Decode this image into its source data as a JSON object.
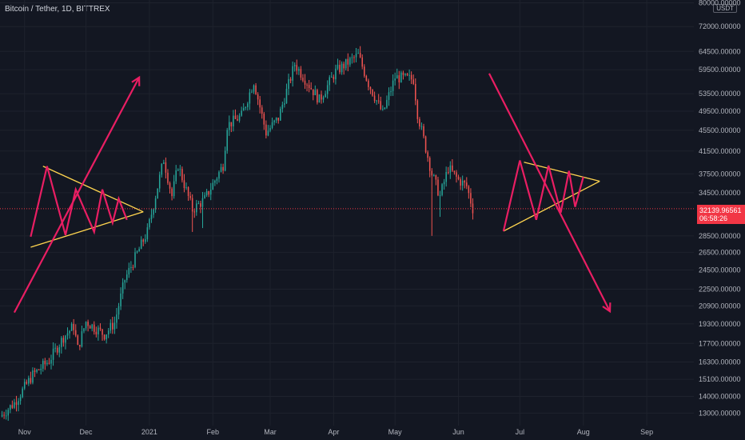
{
  "header": {
    "symbol_title": "Bitcoin / Tether, 1D, BITTREX"
  },
  "price_axis": {
    "unit": "USDT"
  },
  "last_price": {
    "value": "32139.96561",
    "countdown": "06:58:26"
  },
  "colors": {
    "background": "#131722",
    "grid": "#1e222d",
    "up": "#26a69a",
    "down": "#ef5350",
    "arrow": "#e91e63",
    "triangle": "#ffd54f",
    "last_price": "#f23645"
  },
  "chart_data": {
    "type": "candlestick",
    "y_scale": "log",
    "ylim": [
      12300,
      81000
    ],
    "xlim": [
      "2020-10-20",
      "2021-09-24"
    ],
    "y_ticks": [
      "80000.00000",
      "72000.00000",
      "64500.00000",
      "59500.00000",
      "53500.00000",
      "49500.00000",
      "45500.00000",
      "41500.00000",
      "37500.00000",
      "34500.00000",
      "28500.00000",
      "26500.00000",
      "24500.00000",
      "22500.00000",
      "20900.00000",
      "19300.00000",
      "17700.00000",
      "16300.00000",
      "15100.00000",
      "14000.00000",
      "13000.00000"
    ],
    "x_ticks": [
      {
        "label": "Nov",
        "date": "2020-11-01"
      },
      {
        "label": "Dec",
        "date": "2020-12-01"
      },
      {
        "label": "2021",
        "date": "2021-01-01"
      },
      {
        "label": "Feb",
        "date": "2021-02-01"
      },
      {
        "label": "Mar",
        "date": "2021-03-01"
      },
      {
        "label": "Apr",
        "date": "2021-04-01"
      },
      {
        "label": "May",
        "date": "2021-05-01"
      },
      {
        "label": "Jun",
        "date": "2021-06-01"
      },
      {
        "label": "Jul",
        "date": "2021-07-01"
      },
      {
        "label": "Aug",
        "date": "2021-08-01"
      },
      {
        "label": "Sep",
        "date": "2021-09-01"
      }
    ],
    "price_path": [
      [
        "2020-10-20",
        12800
      ],
      [
        "2020-10-27",
        13600
      ],
      [
        "2020-11-05",
        15400
      ],
      [
        "2020-11-13",
        16400
      ],
      [
        "2020-11-20",
        18200
      ],
      [
        "2020-11-25",
        19100
      ],
      [
        "2020-11-27",
        17300
      ],
      [
        "2020-12-01",
        19500
      ],
      [
        "2020-12-10",
        18400
      ],
      [
        "2020-12-15",
        19400
      ],
      [
        "2020-12-20",
        23500
      ],
      [
        "2020-12-31",
        29000
      ],
      [
        "2021-01-08",
        40000
      ],
      [
        "2021-01-12",
        34000
      ],
      [
        "2021-01-15",
        39000
      ],
      [
        "2021-01-22",
        32000
      ],
      [
        "2021-01-28",
        33500
      ],
      [
        "2021-02-06",
        39000
      ],
      [
        "2021-02-08",
        46500
      ],
      [
        "2021-02-15",
        48500
      ],
      [
        "2021-02-21",
        56500
      ],
      [
        "2021-02-27",
        45000
      ],
      [
        "2021-03-05",
        48000
      ],
      [
        "2021-03-13",
        61000
      ],
      [
        "2021-03-25",
        52000
      ],
      [
        "2021-04-02",
        59000
      ],
      [
        "2021-04-13",
        63500
      ],
      [
        "2021-04-18",
        56000
      ],
      [
        "2021-04-25",
        49000
      ],
      [
        "2021-05-01",
        57500
      ],
      [
        "2021-05-10",
        57000
      ],
      [
        "2021-05-12",
        49000
      ],
      [
        "2021-05-19",
        37500
      ],
      [
        "2021-05-23",
        34000
      ],
      [
        "2021-05-27",
        38500
      ],
      [
        "2021-06-01",
        36500
      ],
      [
        "2021-06-05",
        35500
      ],
      [
        "2021-06-08",
        32140
      ]
    ],
    "wicks": [
      {
        "date": "2021-01-22",
        "low": 29000
      },
      {
        "date": "2021-01-27",
        "low": 29500
      },
      {
        "date": "2021-05-19",
        "low": 28500
      },
      {
        "date": "2021-05-23",
        "low": 31000
      }
    ],
    "drawings": {
      "arrows": [
        {
          "from": [
            "2020-10-27",
            20300
          ],
          "to": [
            "2020-12-27",
            57500
          ]
        },
        {
          "from": [
            "2021-06-16",
            58500
          ],
          "to": [
            "2021-08-14",
            20400
          ]
        }
      ],
      "triangles": [
        {
          "apex": [
            "2020-12-29",
            31700
          ],
          "upper_start": [
            "2020-11-10",
            38800
          ],
          "lower_start": [
            "2020-11-04",
            27100
          ]
        },
        {
          "apex": [
            "2021-08-09",
            36300
          ],
          "upper_start": [
            "2021-07-03",
            39500
          ],
          "lower_start": [
            "2021-06-23",
            29100
          ]
        }
      ],
      "zigzags": [
        [
          [
            "2020-11-04",
            28400
          ],
          [
            "2020-11-12",
            38800
          ],
          [
            "2020-11-21",
            28600
          ],
          [
            "2020-11-26",
            35000
          ],
          [
            "2020-12-05",
            29000
          ],
          [
            "2020-12-09",
            35000
          ],
          [
            "2020-12-14",
            30200
          ],
          [
            "2020-12-17",
            33600
          ],
          [
            "2020-12-21",
            30600
          ]
        ],
        [
          [
            "2021-06-23",
            29100
          ],
          [
            "2021-07-01",
            39800
          ],
          [
            "2021-07-09",
            30600
          ],
          [
            "2021-07-15",
            38900
          ],
          [
            "2021-07-21",
            31600
          ],
          [
            "2021-07-25",
            38000
          ],
          [
            "2021-07-28",
            32400
          ],
          [
            "2021-08-01",
            37000
          ]
        ]
      ]
    }
  }
}
